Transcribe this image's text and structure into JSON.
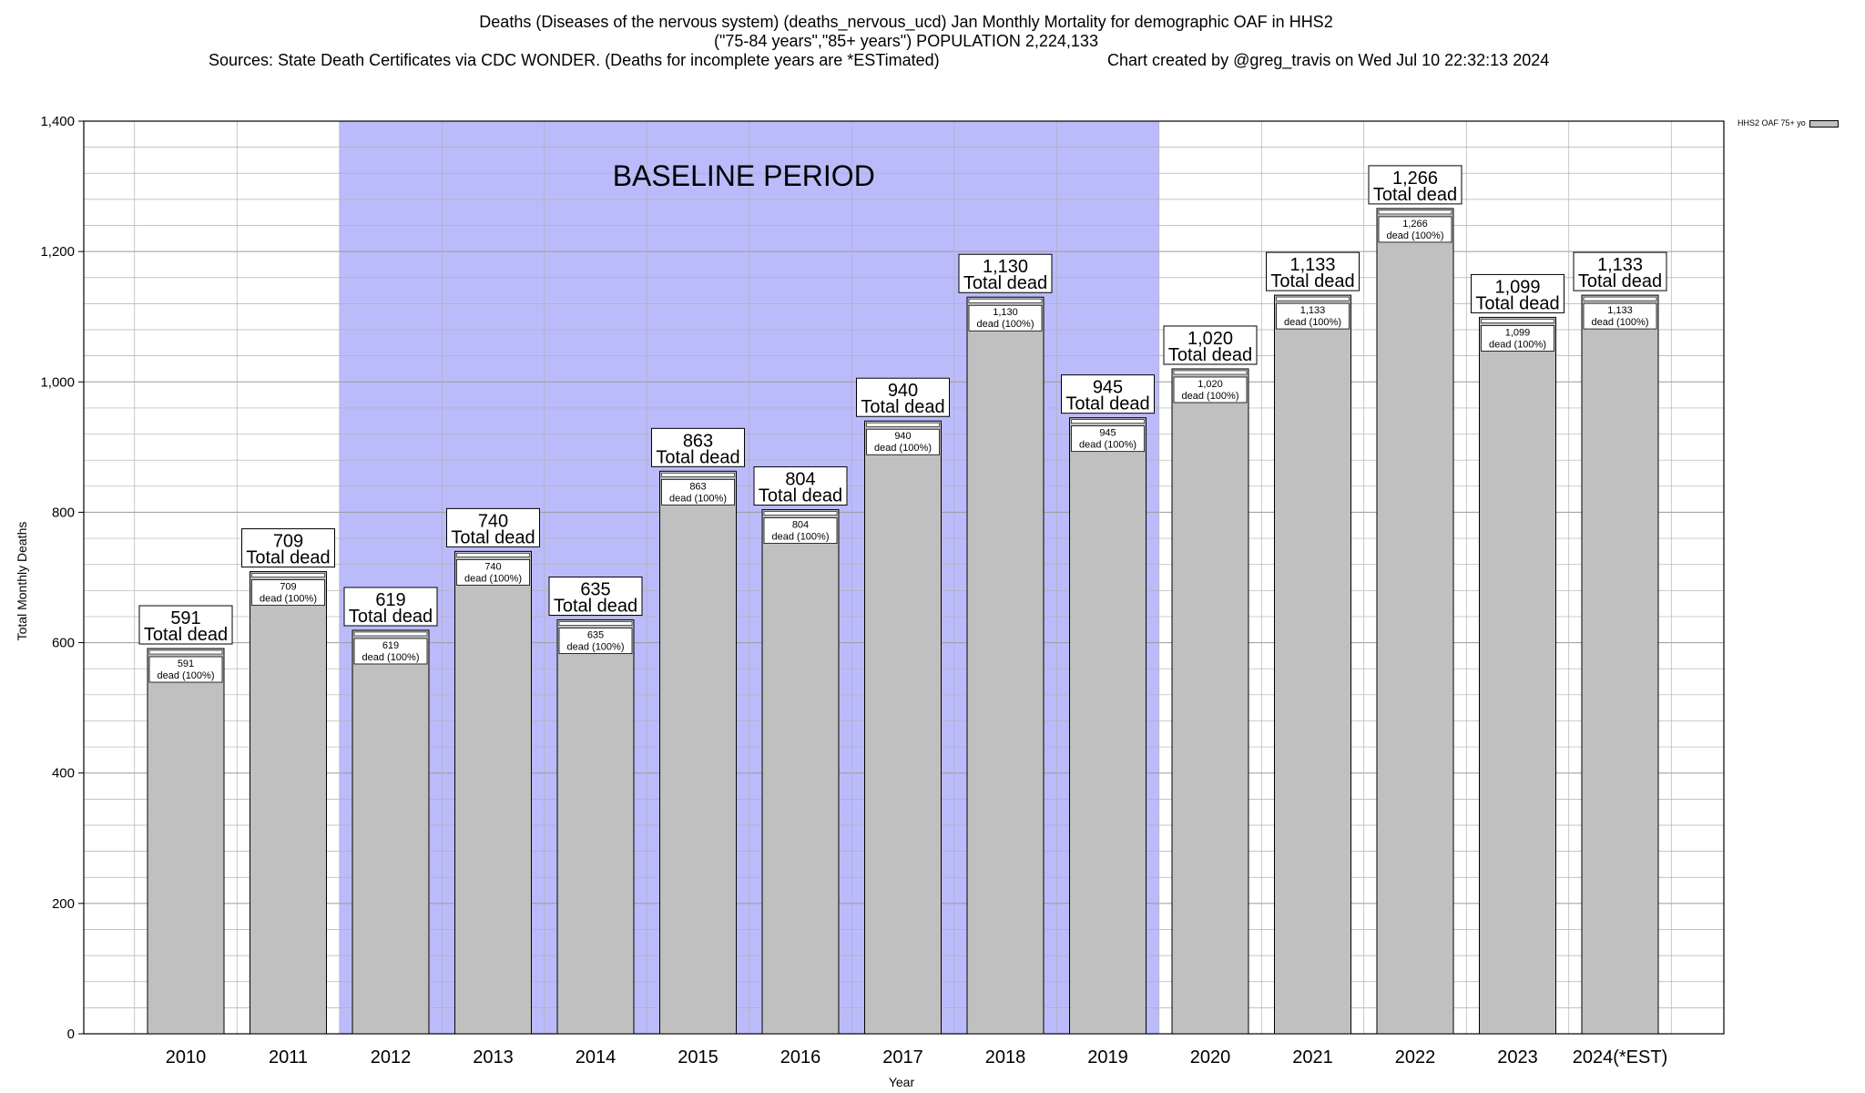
{
  "title": {
    "line1": "Deaths (Diseases of the nervous system) (deaths_nervous_ucd) Jan Monthly Mortality for demographic OAF in HHS2",
    "line2": "(\"75-84 years\",\"85+ years\") POPULATION 2,224,133",
    "sources": "Sources: State Death Certificates via CDC WONDER. (Deaths for incomplete years are *ESTimated)",
    "credit": "Chart created by @greg_travis on Wed Jul 10 22:32:13 2024"
  },
  "legend_label": "HHS2 OAF 75+ yo",
  "colors": {
    "bar": "#c0c0c0",
    "baseline": "#bbbbfb",
    "grid": "#b0b0b0"
  },
  "chart_data": {
    "type": "bar",
    "ylabel": "Total Monthly Deaths",
    "xlabel": "Year",
    "ylim": [
      0,
      1400
    ],
    "yticks": [
      "0",
      "200",
      "400",
      "600",
      "800",
      "1,000",
      "1,200",
      "1,400"
    ],
    "grid": true,
    "legend_position": "top-right",
    "categories": [
      "2010",
      "2011",
      "2012",
      "2013",
      "2014",
      "2015",
      "2016",
      "2017",
      "2018",
      "2019",
      "2020",
      "2021",
      "2022",
      "2023",
      "2024(*EST)"
    ],
    "series": [
      {
        "name": "HHS2 OAF 75+ yo",
        "values": [
          591,
          709,
          619,
          740,
          635,
          863,
          804,
          940,
          1130,
          945,
          1020,
          1133,
          1266,
          1099,
          1133
        ],
        "value_labels": [
          "591",
          "709",
          "619",
          "740",
          "635",
          "863",
          "804",
          "940",
          "1,130",
          "945",
          "1,020",
          "1,133",
          "1,266",
          "1,099",
          "1,133"
        ]
      }
    ],
    "total_label_suffix": "Total dead",
    "inner_label_suffix": "dead (100%)",
    "baseline_period": {
      "label": "BASELINE PERIOD",
      "from": "2012",
      "to": "2019"
    }
  }
}
